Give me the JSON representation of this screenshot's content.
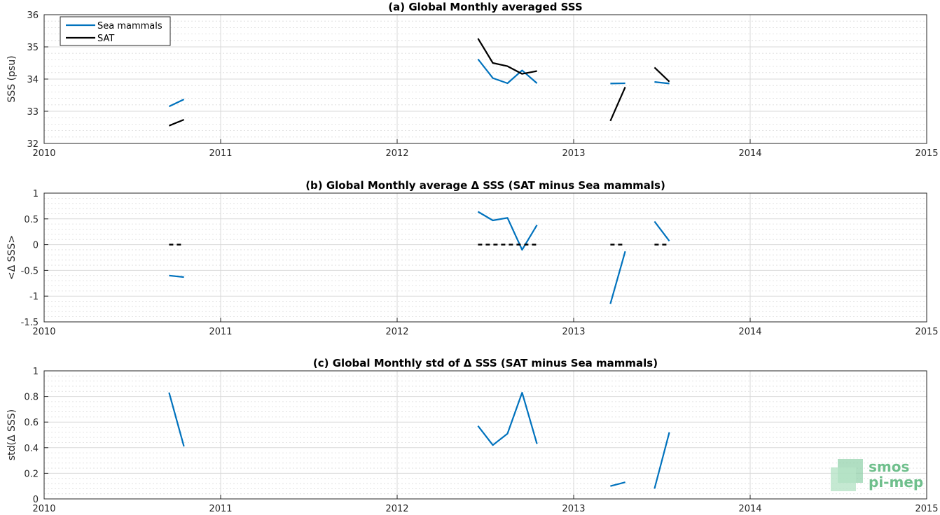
{
  "chart_data": [
    {
      "type": "line",
      "title": "(a) Global Monthly averaged SSS",
      "xlabel": "",
      "ylabel": "SSS (psu)",
      "xlim": [
        2010,
        2015
      ],
      "ylim": [
        32,
        36
      ],
      "xticks": [
        2010,
        2011,
        2012,
        2013,
        2014,
        2015
      ],
      "xtick_labels": [
        "2010",
        "2011",
        "2012",
        "2013",
        "2014",
        "2015"
      ],
      "yticks": [
        32,
        33,
        34,
        35,
        36
      ],
      "ytick_labels": [
        "32",
        "33",
        "34",
        "35",
        "36"
      ],
      "grid": true,
      "legend": "top-left",
      "series": [
        {
          "name": "Sea mammals",
          "color": "#0072bd",
          "segments": [
            [
              [
                2010.708,
                33.15
              ],
              [
                2010.792,
                33.37
              ]
            ],
            [
              [
                2012.458,
                34.62
              ],
              [
                2012.542,
                34.03
              ],
              [
                2012.625,
                33.87
              ],
              [
                2012.708,
                34.27
              ],
              [
                2012.792,
                33.87
              ]
            ],
            [
              [
                2013.208,
                33.86
              ],
              [
                2013.292,
                33.87
              ]
            ],
            [
              [
                2013.458,
                33.91
              ],
              [
                2013.542,
                33.86
              ]
            ]
          ]
        },
        {
          "name": "SAT",
          "color": "#000000",
          "segments": [
            [
              [
                2010.708,
                32.55
              ],
              [
                2010.792,
                32.74
              ]
            ],
            [
              [
                2012.458,
                35.26
              ],
              [
                2012.542,
                34.5
              ],
              [
                2012.625,
                34.4
              ],
              [
                2012.708,
                34.16
              ],
              [
                2012.792,
                34.25
              ]
            ],
            [
              [
                2013.208,
                32.7
              ],
              [
                2013.292,
                33.75
              ]
            ],
            [
              [
                2013.458,
                34.36
              ],
              [
                2013.542,
                33.92
              ]
            ]
          ]
        }
      ]
    },
    {
      "type": "line",
      "title": "(b) Global Monthly average Δ SSS (SAT minus Sea mammals)",
      "xlabel": "",
      "ylabel": "<Δ SSS>",
      "xlim": [
        2010,
        2015
      ],
      "ylim": [
        -1.5,
        1
      ],
      "xticks": [
        2010,
        2011,
        2012,
        2013,
        2014,
        2015
      ],
      "xtick_labels": [
        "2010",
        "2011",
        "2012",
        "2013",
        "2014",
        "2015"
      ],
      "yticks": [
        -1.5,
        -1,
        -0.5,
        0,
        0.5,
        1
      ],
      "ytick_labels": [
        "-1.5",
        "-1",
        "-0.5",
        "0",
        "0.5",
        "1"
      ],
      "grid": true,
      "series": [
        {
          "color": "#0072bd",
          "segments": [
            [
              [
                2010.708,
                -0.6
              ],
              [
                2010.792,
                -0.63
              ]
            ],
            [
              [
                2012.458,
                0.64
              ],
              [
                2012.542,
                0.47
              ],
              [
                2012.625,
                0.52
              ],
              [
                2012.708,
                -0.1
              ],
              [
                2012.792,
                0.38
              ]
            ],
            [
              [
                2013.208,
                -1.15
              ],
              [
                2013.292,
                -0.13
              ]
            ],
            [
              [
                2013.458,
                0.45
              ],
              [
                2013.542,
                0.07
              ]
            ]
          ]
        },
        {
          "color": "#000000",
          "dashed": true,
          "segments": [
            [
              [
                2010.708,
                0
              ],
              [
                2010.792,
                0
              ]
            ],
            [
              [
                2012.458,
                0
              ],
              [
                2012.792,
                0
              ]
            ],
            [
              [
                2013.208,
                0
              ],
              [
                2013.292,
                0
              ]
            ],
            [
              [
                2013.458,
                0
              ],
              [
                2013.542,
                0
              ]
            ]
          ]
        }
      ]
    },
    {
      "type": "line",
      "title": "(c) Global Monthly std of Δ SSS (SAT minus Sea mammals)",
      "xlabel": "",
      "ylabel": "std(Δ SSS)",
      "xlim": [
        2010,
        2015
      ],
      "ylim": [
        0,
        1
      ],
      "xticks": [
        2010,
        2011,
        2012,
        2013,
        2014,
        2015
      ],
      "xtick_labels": [
        "2010",
        "2011",
        "2012",
        "2013",
        "2014",
        "2015"
      ],
      "yticks": [
        0,
        0.2,
        0.4,
        0.6,
        0.8,
        1
      ],
      "ytick_labels": [
        "0",
        "0.2",
        "0.4",
        "0.6",
        "0.8",
        "1"
      ],
      "grid": true,
      "series": [
        {
          "color": "#0072bd",
          "segments": [
            [
              [
                2010.708,
                0.83
              ],
              [
                2010.792,
                0.41
              ]
            ],
            [
              [
                2012.458,
                0.57
              ],
              [
                2012.542,
                0.42
              ],
              [
                2012.625,
                0.51
              ],
              [
                2012.708,
                0.83
              ],
              [
                2012.792,
                0.43
              ]
            ],
            [
              [
                2013.208,
                0.1
              ],
              [
                2013.292,
                0.13
              ]
            ],
            [
              [
                2013.458,
                0.08
              ],
              [
                2013.542,
                0.52
              ]
            ]
          ]
        }
      ]
    }
  ],
  "logo": {
    "line1": "smos",
    "line2": "pi-mep",
    "color": "#6fbf8c"
  }
}
